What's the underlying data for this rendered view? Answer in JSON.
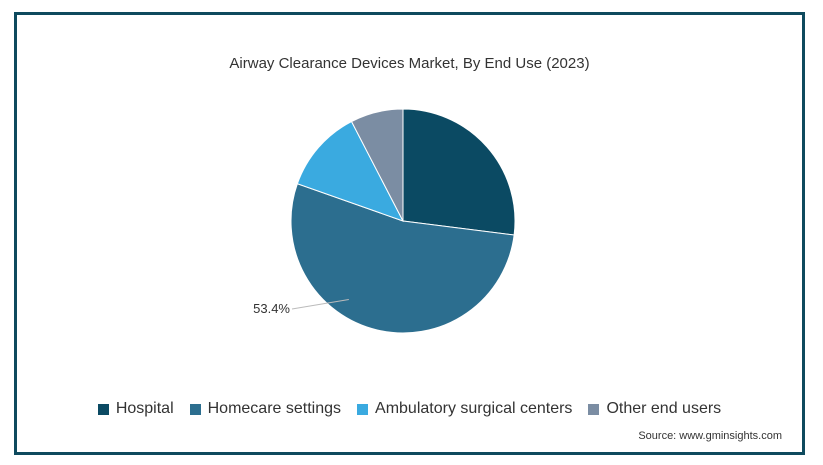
{
  "chart_data": {
    "type": "pie",
    "title": "Airway Clearance Devices Market, By End Use (2023)",
    "slices": [
      {
        "name": "Hospital",
        "value": 27.0,
        "color": "#0b4a63",
        "label": ""
      },
      {
        "name": "Homecare settings",
        "value": 53.4,
        "color": "#2c6e8f",
        "label": "53.4%"
      },
      {
        "name": "Ambulatory surgical centers",
        "value": 12.0,
        "color": "#3aaae0",
        "label": ""
      },
      {
        "name": "Other end users",
        "value": 7.6,
        "color": "#7b8da3",
        "label": ""
      }
    ],
    "legend_position": "bottom"
  },
  "source": "Source: www.gminsights.com"
}
